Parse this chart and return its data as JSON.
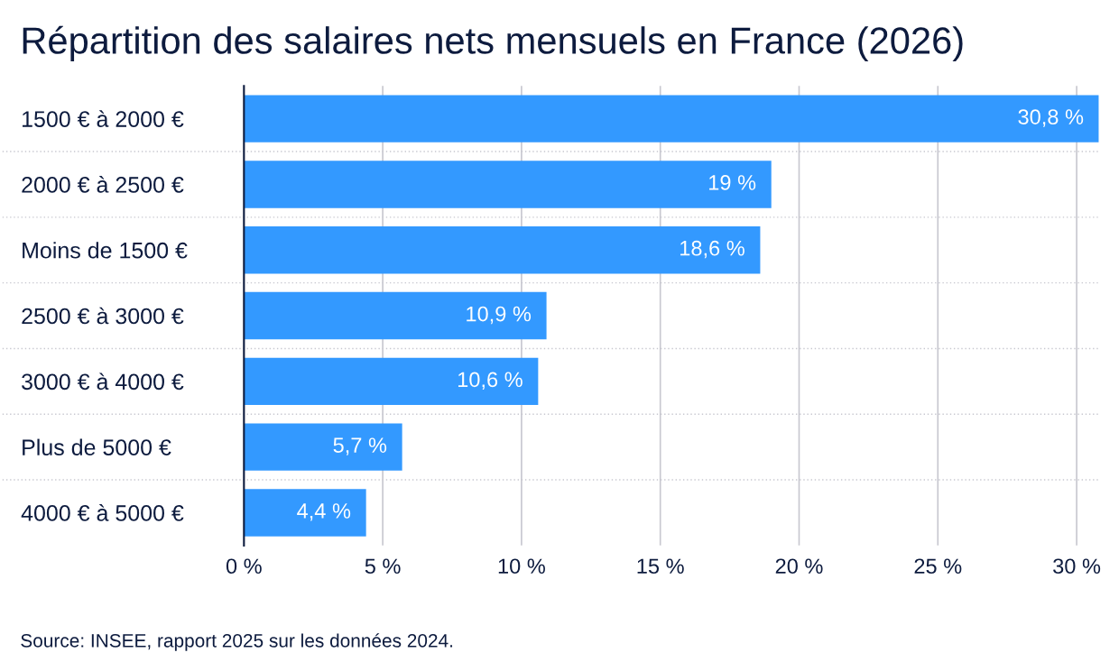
{
  "chart_data": {
    "type": "bar",
    "orientation": "horizontal",
    "title": "Répartition des salaires nets mensuels en France (2026)",
    "categories": [
      "1500 € à 2000 €",
      "2000 € à 2500 €",
      "Moins de 1500 €",
      "2500 € à 3000 €",
      "3000 € à 4000 €",
      "Plus de 5000 €",
      "4000 € à 5000 €"
    ],
    "values": [
      30.8,
      19,
      18.6,
      10.9,
      10.6,
      5.7,
      4.4
    ],
    "value_labels": [
      "30,8 %",
      "19 %",
      "18,6 %",
      "10,9 %",
      "10,6 %",
      "5,7 %",
      "4,4 %"
    ],
    "color": "#3399ff",
    "xlim": [
      0,
      30.8
    ],
    "xticks": [
      {
        "value": 0,
        "label": "0 %"
      },
      {
        "value": 5,
        "label": "5 %"
      },
      {
        "value": 10,
        "label": "10 %"
      },
      {
        "value": 15,
        "label": "15 %"
      },
      {
        "value": 20,
        "label": "20 %"
      },
      {
        "value": 25,
        "label": "25 %"
      },
      {
        "value": 30,
        "label": "30 %"
      }
    ],
    "grid": "x",
    "annotations": [
      "Source: INSEE, rapport 2025 sur les données 2024."
    ]
  }
}
